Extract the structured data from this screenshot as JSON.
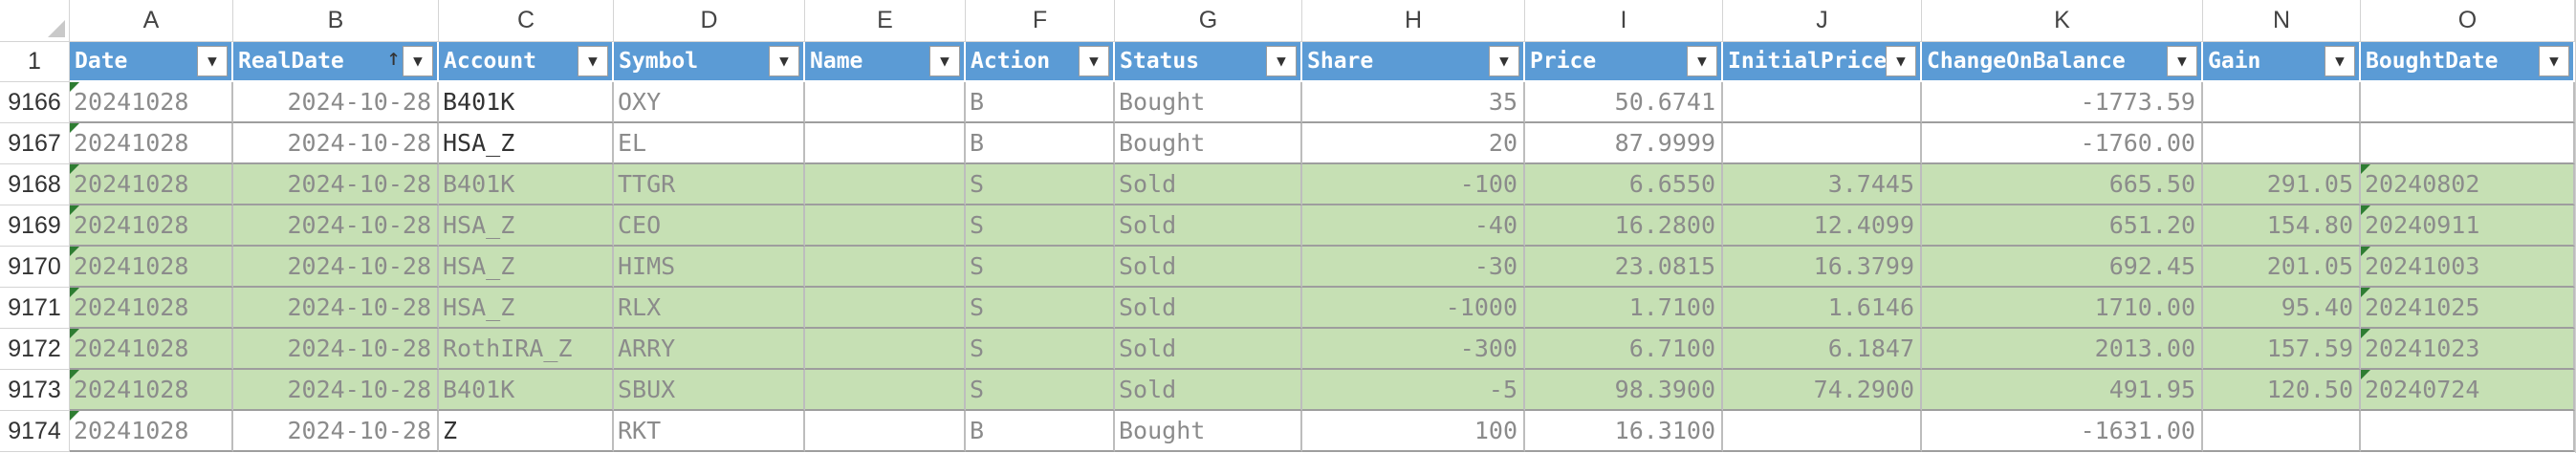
{
  "sheet": {
    "column_letters": [
      "A",
      "B",
      "C",
      "D",
      "E",
      "F",
      "G",
      "H",
      "I",
      "J",
      "K",
      "N",
      "O"
    ],
    "corner_label": "1",
    "headers": [
      "Date",
      "RealDate",
      "Account",
      "Symbol",
      "Name",
      "Action",
      "Status",
      "Share",
      "Price",
      "InitialPrice",
      "ChangeOnBalance",
      "Gain",
      "BoughtDate"
    ],
    "sort_indicator": "↑",
    "colors": {
      "header_blue": "#5b9bd5",
      "sold_green": "#c6e0b4",
      "flag_green": "#2e7d32"
    },
    "rows": [
      {
        "num": "9166",
        "status_group": "bought",
        "cells": [
          "20241028",
          "2024-10-28",
          "B401K",
          "OXY",
          "",
          "B",
          "Bought",
          "35",
          "50.6741",
          "",
          "-1773.59",
          "",
          ""
        ]
      },
      {
        "num": "9167",
        "status_group": "bought",
        "cells": [
          "20241028",
          "2024-10-28",
          "HSA_Z",
          "EL",
          "",
          "B",
          "Bought",
          "20",
          "87.9999",
          "",
          "-1760.00",
          "",
          ""
        ]
      },
      {
        "num": "9168",
        "status_group": "sold",
        "cells": [
          "20241028",
          "2024-10-28",
          "B401K",
          "TTGR",
          "",
          "S",
          "Sold",
          "-100",
          "6.6550",
          "3.7445",
          "665.50",
          "291.05",
          "20240802"
        ]
      },
      {
        "num": "9169",
        "status_group": "sold",
        "cells": [
          "20241028",
          "2024-10-28",
          "HSA_Z",
          "CEO",
          "",
          "S",
          "Sold",
          "-40",
          "16.2800",
          "12.4099",
          "651.20",
          "154.80",
          "20240911"
        ]
      },
      {
        "num": "9170",
        "status_group": "sold",
        "cells": [
          "20241028",
          "2024-10-28",
          "HSA_Z",
          "HIMS",
          "",
          "S",
          "Sold",
          "-30",
          "23.0815",
          "16.3799",
          "692.45",
          "201.05",
          "20241003"
        ]
      },
      {
        "num": "9171",
        "status_group": "sold",
        "cells": [
          "20241028",
          "2024-10-28",
          "HSA_Z",
          "RLX",
          "",
          "S",
          "Sold",
          "-1000",
          "1.7100",
          "1.6146",
          "1710.00",
          "95.40",
          "20241025"
        ]
      },
      {
        "num": "9172",
        "status_group": "sold",
        "cells": [
          "20241028",
          "2024-10-28",
          "RothIRA_Z",
          "ARRY",
          "",
          "S",
          "Sold",
          "-300",
          "6.7100",
          "6.1847",
          "2013.00",
          "157.59",
          "20241023"
        ]
      },
      {
        "num": "9173",
        "status_group": "sold",
        "cells": [
          "20241028",
          "2024-10-28",
          "B401K",
          "SBUX",
          "",
          "S",
          "Sold",
          "-5",
          "98.3900",
          "74.2900",
          "491.95",
          "120.50",
          "20240724"
        ]
      },
      {
        "num": "9174",
        "status_group": "bought",
        "cells": [
          "20241028",
          "2024-10-28",
          "Z",
          "RKT",
          "",
          "B",
          "Bought",
          "100",
          "16.3100",
          "",
          "-1631.00",
          "",
          ""
        ]
      }
    ]
  }
}
